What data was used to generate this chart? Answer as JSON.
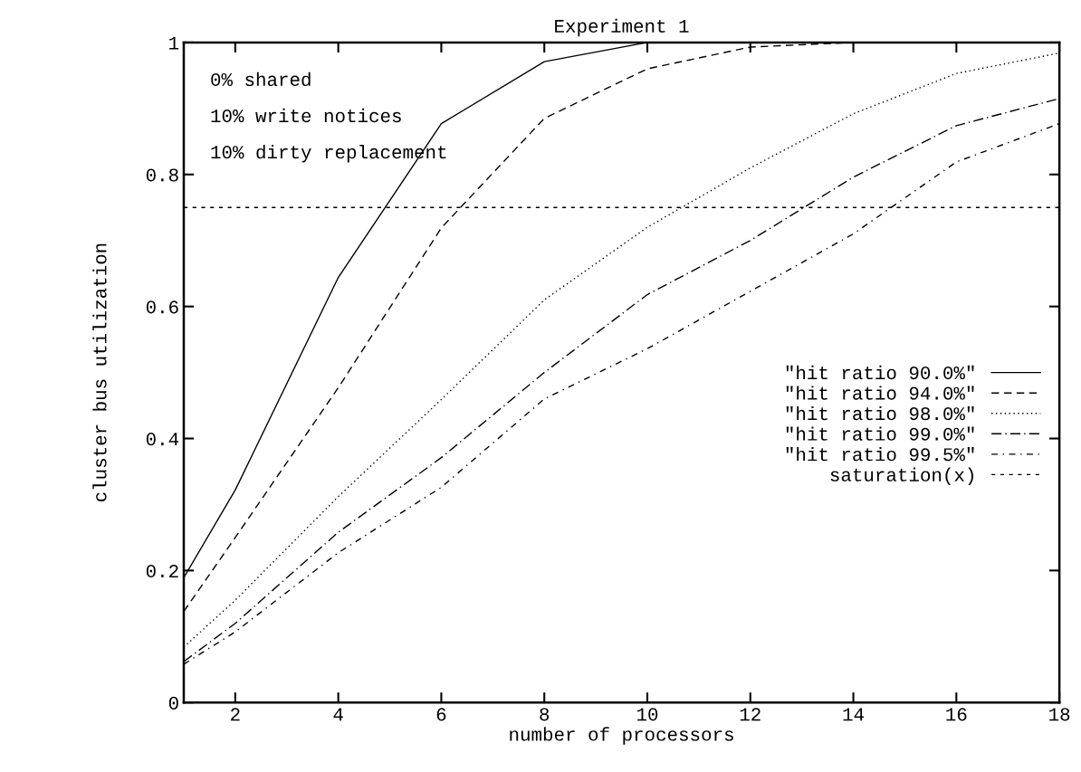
{
  "chart_data": {
    "type": "line",
    "title": "Experiment 1",
    "xlabel": "number of processors",
    "ylabel": "cluster bus utilization",
    "x": [
      1,
      2,
      4,
      6,
      8,
      10,
      12,
      14,
      16,
      18
    ],
    "series": [
      {
        "name": "\"hit ratio 90.0%\"",
        "color": "#000000",
        "line_style": "solid",
        "values": [
          0.189,
          0.322,
          0.644,
          0.877,
          0.971,
          1.0,
          1.0,
          1.0,
          1.0,
          1.0
        ]
      },
      {
        "name": "\"hit ratio 94.0%\"",
        "color": "#000000",
        "line_style": "dashed",
        "values": [
          0.138,
          0.25,
          0.477,
          0.719,
          0.885,
          0.96,
          0.993,
          1.0,
          1.0,
          1.0
        ]
      },
      {
        "name": "\"hit ratio 98.0%\"",
        "color": "#000000",
        "line_style": "dotted",
        "values": [
          0.084,
          0.155,
          0.312,
          0.459,
          0.61,
          0.72,
          0.81,
          0.892,
          0.953,
          0.984
        ]
      },
      {
        "name": "\"hit ratio 99.0%\"",
        "color": "#000000",
        "line_style": "dashdot",
        "values": [
          0.062,
          0.12,
          0.258,
          0.371,
          0.5,
          0.618,
          0.7,
          0.796,
          0.874,
          0.915
        ]
      },
      {
        "name": "\"hit ratio 99.5%\"",
        "color": "#000000",
        "line_style": "dashdotdot",
        "values": [
          0.058,
          0.107,
          0.227,
          0.326,
          0.46,
          0.536,
          0.623,
          0.71,
          0.819,
          0.877
        ]
      },
      {
        "name": "saturation(x)",
        "color": "#000000",
        "line_style": "finedash",
        "x": [
          1,
          18
        ],
        "values": [
          0.75,
          0.75
        ]
      }
    ],
    "xlim": [
      1,
      18
    ],
    "xticks": [
      2,
      4,
      6,
      8,
      10,
      12,
      14,
      16,
      18
    ],
    "ylim": [
      0,
      1
    ],
    "yticks": [
      0,
      0.2,
      0.4,
      0.6,
      0.8,
      1
    ],
    "annotations": [
      "0% shared",
      "10% write notices",
      "10% dirty replacement"
    ],
    "legend": "right",
    "grid": false,
    "marker": "none"
  }
}
